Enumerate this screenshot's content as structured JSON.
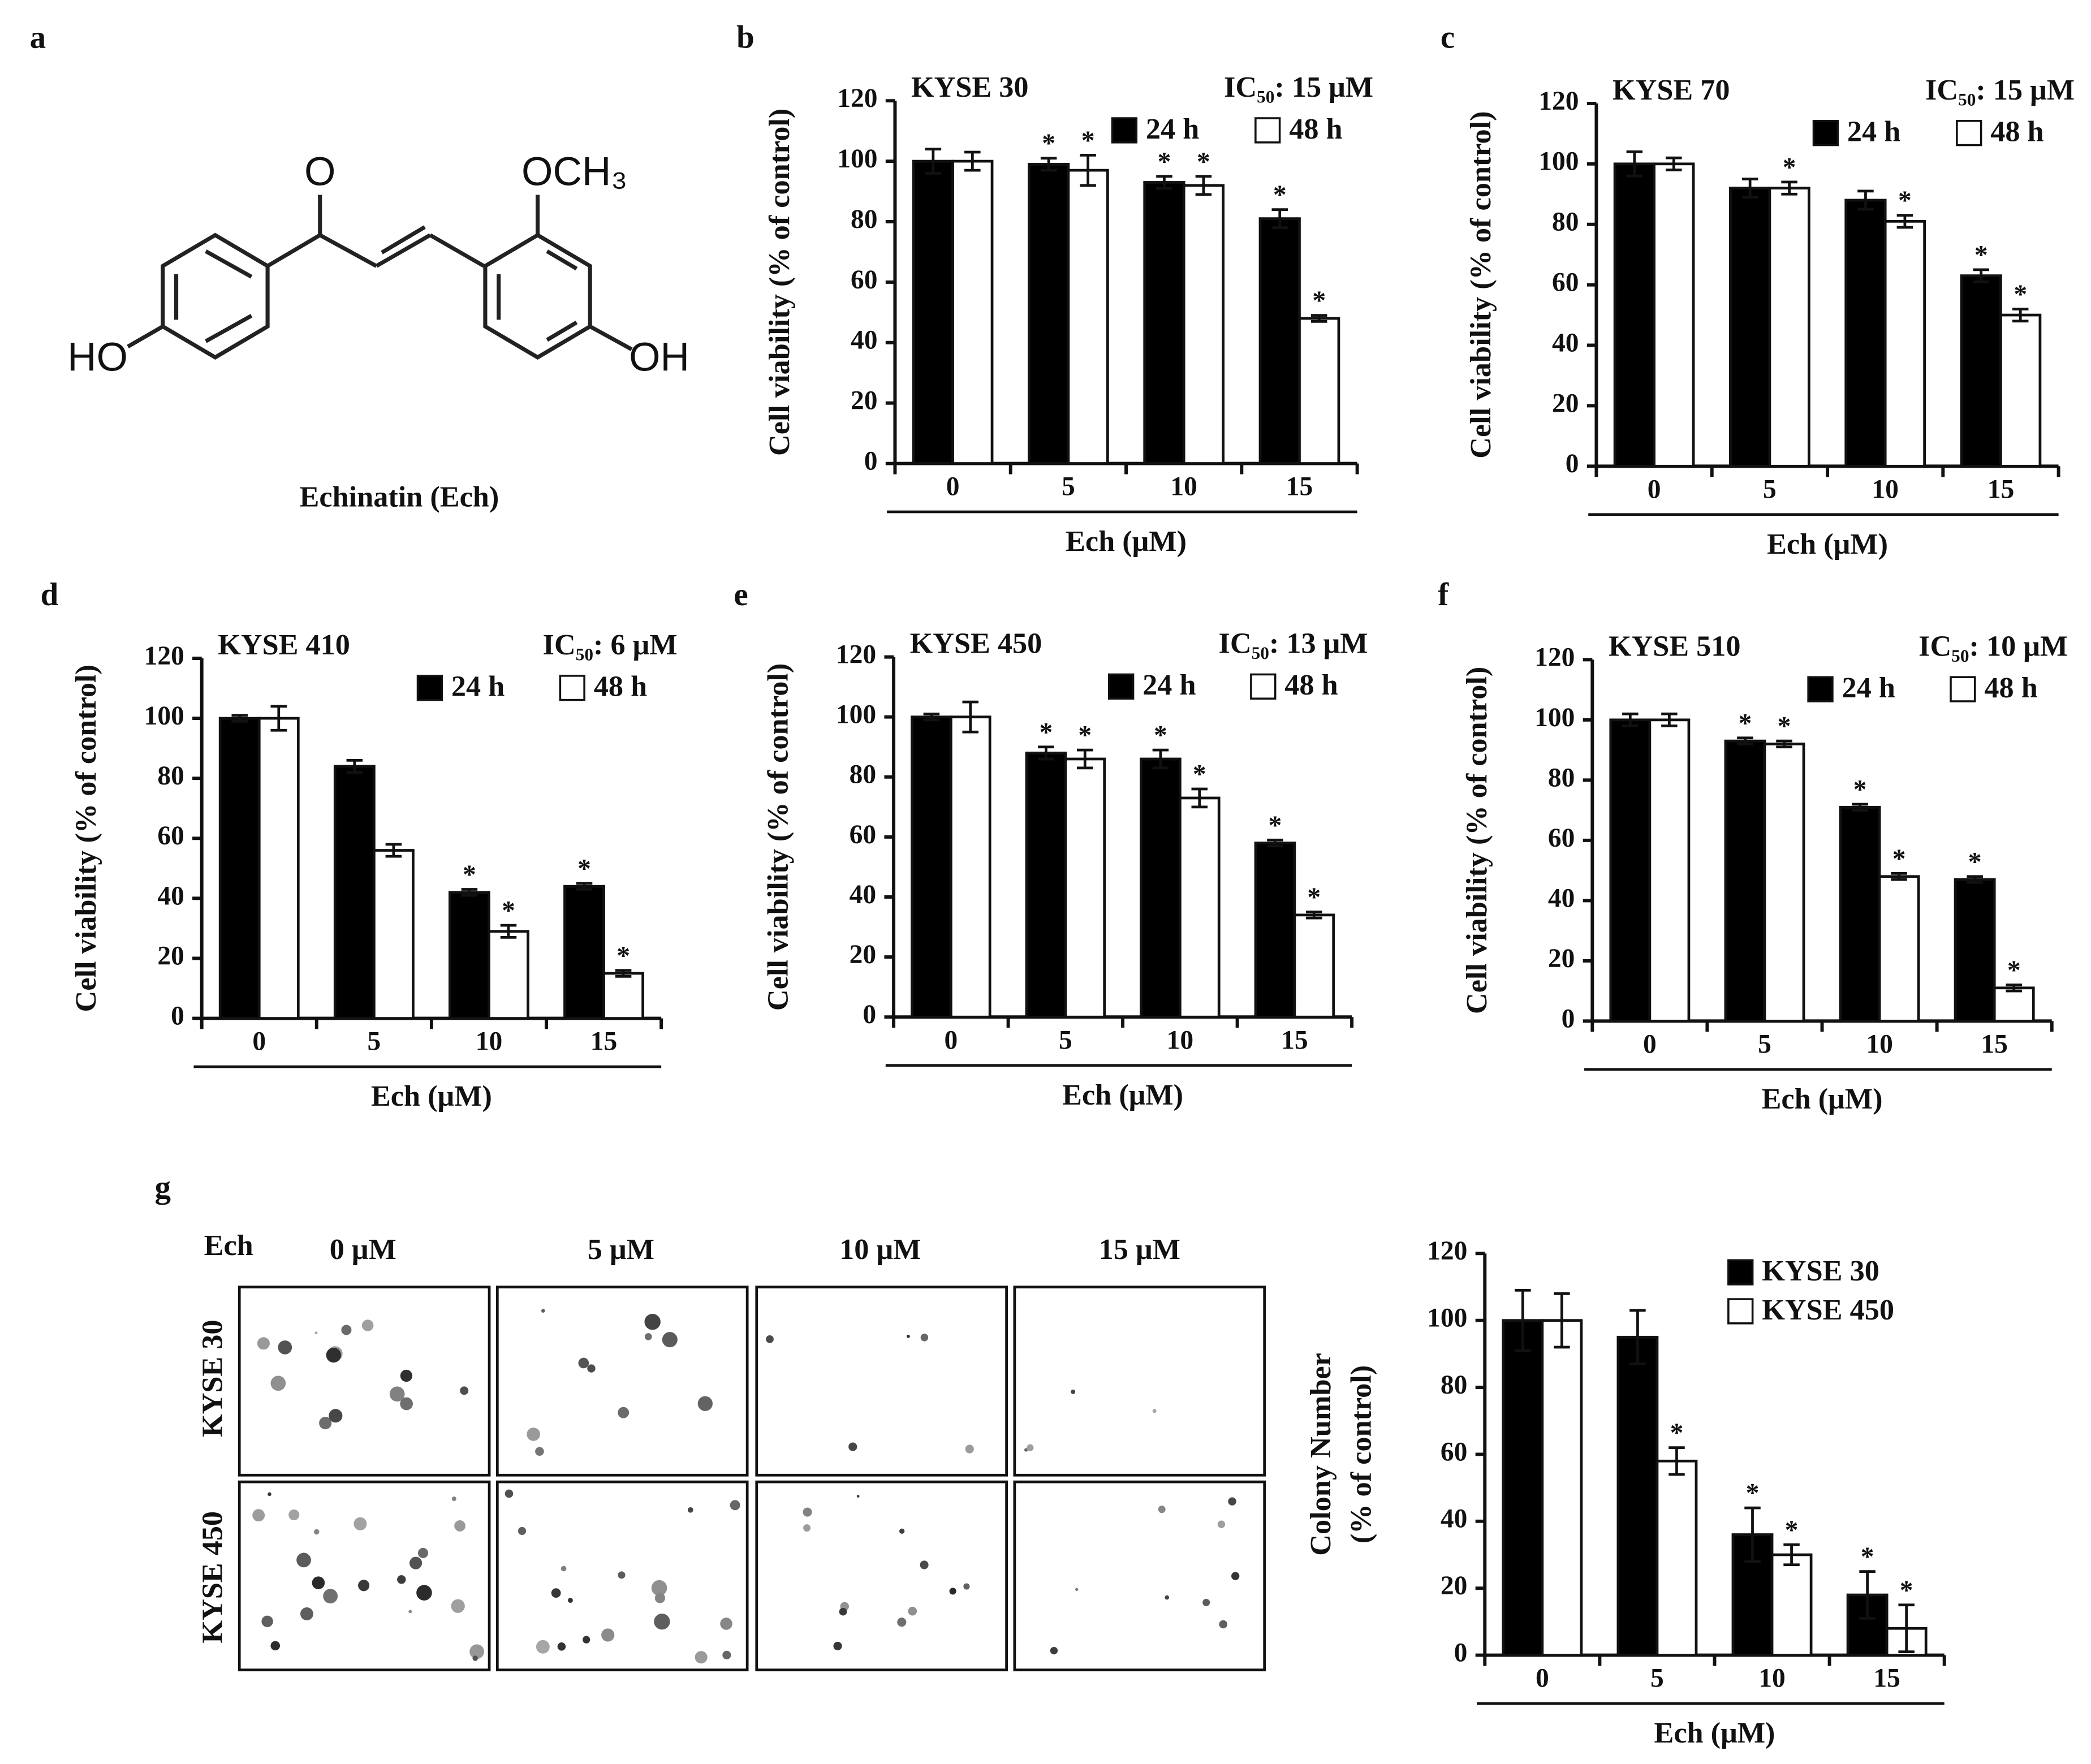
{
  "structure": {
    "panel": "a",
    "atoms": {
      "carbonyl": "O",
      "methoxy": "OCH₃",
      "left_hydroxyl": "HO",
      "right_hydroxyl": "OH"
    },
    "caption": "Echinatin (Ech)"
  },
  "colony_images": {
    "panel": "g",
    "treatment_label": "Ech",
    "columns": [
      "0 μM",
      "5 μM",
      "10 μM",
      "15 μM"
    ],
    "rows": [
      "KYSE 30",
      "KYSE 450"
    ]
  },
  "chart_data": [
    {
      "type": "bar",
      "panel": "b",
      "title": "KYSE 30",
      "annotation": "IC₅₀: 15 μM",
      "ylabel": "Cell viability (% of control)",
      "xlabel": "Ech (μM)",
      "categories": [
        "0",
        "5",
        "10",
        "15"
      ],
      "ylim": [
        0,
        120
      ],
      "yticks": [
        0,
        20,
        40,
        60,
        80,
        100,
        120
      ],
      "series": [
        {
          "name": "24 h",
          "color": "#000000",
          "values": [
            100,
            99,
            93,
            81
          ],
          "errors": [
            4,
            2,
            2,
            3
          ],
          "markers": [
            null,
            "*",
            "*",
            "*"
          ]
        },
        {
          "name": "48 h",
          "color": "#ffffff",
          "values": [
            100,
            97,
            92,
            48
          ],
          "errors": [
            3,
            5,
            3,
            1
          ],
          "markers": [
            null,
            "*",
            "*",
            "*"
          ]
        }
      ]
    },
    {
      "type": "bar",
      "panel": "c",
      "title": "KYSE 70",
      "annotation": "IC₅₀: 15 μM",
      "ylabel": "Cell viability (% of control)",
      "xlabel": "Ech (μM)",
      "categories": [
        "0",
        "5",
        "10",
        "15"
      ],
      "ylim": [
        0,
        120
      ],
      "yticks": [
        0,
        20,
        40,
        60,
        80,
        100,
        120
      ],
      "series": [
        {
          "name": "24 h",
          "color": "#000000",
          "values": [
            100,
            92,
            88,
            63
          ],
          "errors": [
            4,
            3,
            3,
            2
          ],
          "markers": [
            null,
            null,
            null,
            "*"
          ]
        },
        {
          "name": "48 h",
          "color": "#ffffff",
          "values": [
            100,
            92,
            81,
            50
          ],
          "errors": [
            2,
            2,
            2,
            2
          ],
          "markers": [
            null,
            "*",
            "*",
            "*"
          ]
        }
      ]
    },
    {
      "type": "bar",
      "panel": "d",
      "title": "KYSE 410",
      "annotation": "IC₅₀: 6 μM",
      "ylabel": "Cell viability (% of control)",
      "xlabel": "Ech (μM)",
      "categories": [
        "0",
        "5",
        "10",
        "15"
      ],
      "ylim": [
        0,
        120
      ],
      "yticks": [
        0,
        20,
        40,
        60,
        80,
        100,
        120
      ],
      "series": [
        {
          "name": "24 h",
          "color": "#000000",
          "values": [
            100,
            84,
            42,
            44
          ],
          "errors": [
            1,
            2,
            1,
            1
          ],
          "markers": [
            null,
            null,
            "*",
            "*"
          ]
        },
        {
          "name": "48 h",
          "color": "#ffffff",
          "values": [
            100,
            56,
            29,
            15
          ],
          "errors": [
            4,
            2,
            2,
            1
          ],
          "markers": [
            null,
            null,
            "*",
            "*"
          ]
        }
      ]
    },
    {
      "type": "bar",
      "panel": "e",
      "title": "KYSE 450",
      "annotation": "IC₅₀: 13 μM",
      "ylabel": "Cell viability (% of control)",
      "xlabel": "Ech (μM)",
      "categories": [
        "0",
        "5",
        "10",
        "15"
      ],
      "ylim": [
        0,
        120
      ],
      "yticks": [
        0,
        20,
        40,
        60,
        80,
        100,
        120
      ],
      "series": [
        {
          "name": "24 h",
          "color": "#000000",
          "values": [
            100,
            88,
            86,
            58
          ],
          "errors": [
            1,
            2,
            3,
            1
          ],
          "markers": [
            null,
            "*",
            "*",
            "*"
          ]
        },
        {
          "name": "48 h",
          "color": "#ffffff",
          "values": [
            100,
            86,
            73,
            34
          ],
          "errors": [
            5,
            3,
            3,
            1
          ],
          "markers": [
            null,
            "*",
            "*",
            "*"
          ]
        }
      ]
    },
    {
      "type": "bar",
      "panel": "f",
      "title": "KYSE 510",
      "annotation": "IC₅₀: 10 μM",
      "ylabel": "Cell viability (% of control)",
      "xlabel": "Ech (μM)",
      "categories": [
        "0",
        "5",
        "10",
        "15"
      ],
      "ylim": [
        0,
        120
      ],
      "yticks": [
        0,
        20,
        40,
        60,
        80,
        100,
        120
      ],
      "series": [
        {
          "name": "24 h",
          "color": "#000000",
          "values": [
            100,
            93,
            71,
            47
          ],
          "errors": [
            2,
            1,
            1,
            1
          ],
          "markers": [
            null,
            "*",
            "*",
            "*"
          ]
        },
        {
          "name": "48 h",
          "color": "#ffffff",
          "values": [
            100,
            92,
            48,
            11
          ],
          "errors": [
            2,
            1,
            1,
            1
          ],
          "markers": [
            null,
            "*",
            "*",
            "*"
          ]
        }
      ]
    },
    {
      "type": "bar",
      "ylabel": [
        "Colony Number",
        "(% of control)"
      ],
      "xlabel": "Ech (μM)",
      "categories": [
        "0",
        "5",
        "10",
        "15"
      ],
      "ylim": [
        0,
        120
      ],
      "yticks": [
        0,
        20,
        40,
        60,
        80,
        100,
        120
      ],
      "series": [
        {
          "name": "KYSE 30",
          "color": "#000000",
          "values": [
            100,
            95,
            36,
            18
          ],
          "errors": [
            9,
            8,
            8,
            7
          ],
          "markers": [
            null,
            null,
            "*",
            "*"
          ]
        },
        {
          "name": "KYSE 450",
          "color": "#ffffff",
          "values": [
            100,
            58,
            30,
            8
          ],
          "errors": [
            8,
            4,
            3,
            7
          ],
          "markers": [
            null,
            "*",
            "*",
            "*"
          ]
        }
      ]
    }
  ]
}
